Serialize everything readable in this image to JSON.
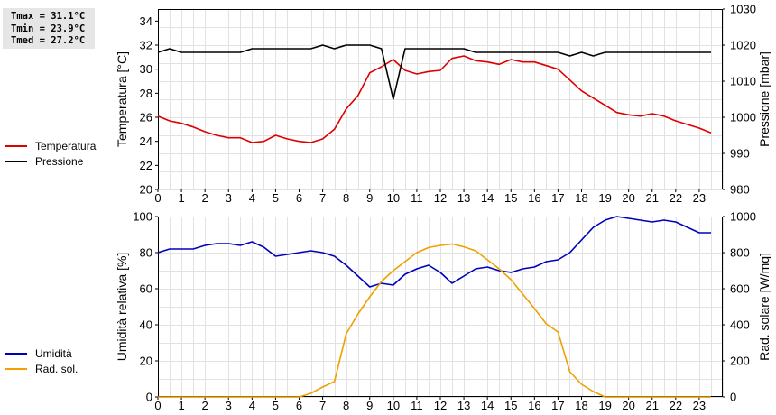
{
  "stats": {
    "tmax": "Tmax = 31.1°C",
    "tmin": "Tmin = 23.9°C",
    "tmed": "Tmed = 27.2°C"
  },
  "chart_data": [
    {
      "type": "line",
      "xlim": [
        0,
        24
      ],
      "x_ticks": [
        "0",
        "1",
        "2",
        "3",
        "4",
        "5",
        "6",
        "7",
        "8",
        "9",
        "10",
        "11",
        "12",
        "13",
        "14",
        "15",
        "16",
        "17",
        "18",
        "19",
        "20",
        "21",
        "22",
        "23"
      ],
      "grid": true,
      "legend_position": "left",
      "ylabel_left": "Temperatura [°C]",
      "ylim_left": [
        20,
        35
      ],
      "yticks_left": [
        "20",
        "22",
        "24",
        "26",
        "28",
        "30",
        "32",
        "34"
      ],
      "ylabel_right": "Pressione [mbar]",
      "ylim_right": [
        980,
        1030
      ],
      "yticks_right": [
        "980",
        "990",
        "1000",
        "1010",
        "1020",
        "1030"
      ],
      "series": [
        {
          "name": "Temperatura",
          "axis": "left",
          "color": "#dd0000",
          "x": [
            0,
            0.5,
            1,
            1.5,
            2,
            2.5,
            3,
            3.5,
            4,
            4.5,
            5,
            5.5,
            6,
            6.5,
            7,
            7.5,
            8,
            8.5,
            9,
            9.5,
            10,
            10.5,
            11,
            11.5,
            12,
            12.5,
            13,
            13.5,
            14,
            14.5,
            15,
            15.5,
            16,
            16.5,
            17,
            17.5,
            18,
            18.5,
            19,
            19.5,
            20,
            20.5,
            21,
            21.5,
            22,
            22.5,
            23,
            23.5
          ],
          "values": [
            26.1,
            25.7,
            25.5,
            25.2,
            24.8,
            24.5,
            24.3,
            24.3,
            23.9,
            24.0,
            24.5,
            24.2,
            24.0,
            23.9,
            24.2,
            25.0,
            26.7,
            27.8,
            29.7,
            30.2,
            30.8,
            29.9,
            29.6,
            29.8,
            29.9,
            30.9,
            31.1,
            30.7,
            30.6,
            30.4,
            30.8,
            30.6,
            30.6,
            30.3,
            30.0,
            29.1,
            28.2,
            27.6,
            27.0,
            26.4,
            26.2,
            26.1,
            26.3,
            26.1,
            25.7,
            25.4,
            25.1,
            24.7
          ]
        },
        {
          "name": "Pressione",
          "axis": "right",
          "color": "#000000",
          "x": [
            0,
            0.5,
            1,
            1.5,
            2,
            2.5,
            3,
            3.5,
            4,
            4.5,
            5,
            5.5,
            6,
            6.5,
            7,
            7.5,
            8,
            8.5,
            9,
            9.5,
            10,
            10.5,
            11,
            11.5,
            12,
            12.5,
            13,
            13.5,
            14,
            14.5,
            15,
            15.5,
            16,
            16.5,
            17,
            17.5,
            18,
            18.5,
            19,
            19.5,
            20,
            20.5,
            21,
            21.5,
            22,
            22.5,
            23,
            23.5
          ],
          "values": [
            1018,
            1019,
            1018,
            1018,
            1018,
            1018,
            1018,
            1018,
            1019,
            1019,
            1019,
            1019,
            1019,
            1019,
            1020,
            1019,
            1020,
            1020,
            1020,
            1019,
            1005,
            1019,
            1019,
            1019,
            1019,
            1019,
            1019,
            1018,
            1018,
            1018,
            1018,
            1018,
            1018,
            1018,
            1018,
            1017,
            1018,
            1017,
            1018,
            1018,
            1018,
            1018,
            1018,
            1018,
            1018,
            1018,
            1018,
            1018
          ]
        }
      ]
    },
    {
      "type": "line",
      "xlim": [
        0,
        24
      ],
      "x_ticks": [
        "0",
        "1",
        "2",
        "3",
        "4",
        "5",
        "6",
        "7",
        "8",
        "9",
        "10",
        "11",
        "12",
        "13",
        "14",
        "15",
        "16",
        "17",
        "18",
        "19",
        "20",
        "21",
        "22",
        "23"
      ],
      "grid": true,
      "legend_position": "left",
      "ylabel_left": "Umidità relativa [%]",
      "ylim_left": [
        0,
        100
      ],
      "yticks_left": [
        "0",
        "20",
        "40",
        "60",
        "80",
        "100"
      ],
      "ylabel_right": "Rad. solare [W/mq]",
      "ylim_right": [
        0,
        1000
      ],
      "yticks_right": [
        "0",
        "200",
        "400",
        "600",
        "800",
        "1000"
      ],
      "series": [
        {
          "name": "Umidità",
          "axis": "left",
          "color": "#0000bb",
          "x": [
            0,
            0.5,
            1,
            1.5,
            2,
            2.5,
            3,
            3.5,
            4,
            4.5,
            5,
            5.5,
            6,
            6.5,
            7,
            7.5,
            8,
            8.5,
            9,
            9.5,
            10,
            10.5,
            11,
            11.5,
            12,
            12.5,
            13,
            13.5,
            14,
            14.5,
            15,
            15.5,
            16,
            16.5,
            17,
            17.5,
            18,
            18.5,
            19,
            19.5,
            20,
            20.5,
            21,
            21.5,
            22,
            22.5,
            23,
            23.5
          ],
          "values": [
            80,
            82,
            82,
            82,
            84,
            85,
            85,
            84,
            86,
            83,
            78,
            79,
            80,
            81,
            80,
            78,
            73,
            67,
            61,
            63,
            62,
            68,
            71,
            73,
            69,
            63,
            67,
            71,
            72,
            70,
            69,
            71,
            72,
            75,
            76,
            80,
            87,
            94,
            98,
            100,
            99,
            98,
            97,
            98,
            97,
            94,
            91,
            91
          ]
        },
        {
          "name": "Rad. sol.",
          "axis": "right",
          "color": "#f0a000",
          "x": [
            0,
            0.5,
            1,
            1.5,
            2,
            2.5,
            3,
            3.5,
            4,
            4.5,
            5,
            5.5,
            6,
            6.5,
            7,
            7.5,
            8,
            8.5,
            9,
            9.5,
            10,
            10.5,
            11,
            11.5,
            12,
            12.5,
            13,
            13.5,
            14,
            14.5,
            15,
            15.5,
            16,
            16.5,
            17,
            17.5,
            18,
            18.5,
            19,
            19.5,
            20,
            20.5,
            21,
            21.5,
            22,
            22.5,
            23,
            23.5
          ],
          "values": [
            0,
            0,
            0,
            0,
            0,
            0,
            0,
            0,
            0,
            0,
            0,
            0,
            0,
            20,
            55,
            85,
            350,
            460,
            555,
            640,
            700,
            750,
            800,
            828,
            840,
            848,
            832,
            810,
            760,
            710,
            650,
            570,
            490,
            405,
            360,
            140,
            70,
            30,
            0,
            0,
            0,
            0,
            0,
            0,
            0,
            0,
            0,
            0
          ]
        }
      ]
    }
  ]
}
